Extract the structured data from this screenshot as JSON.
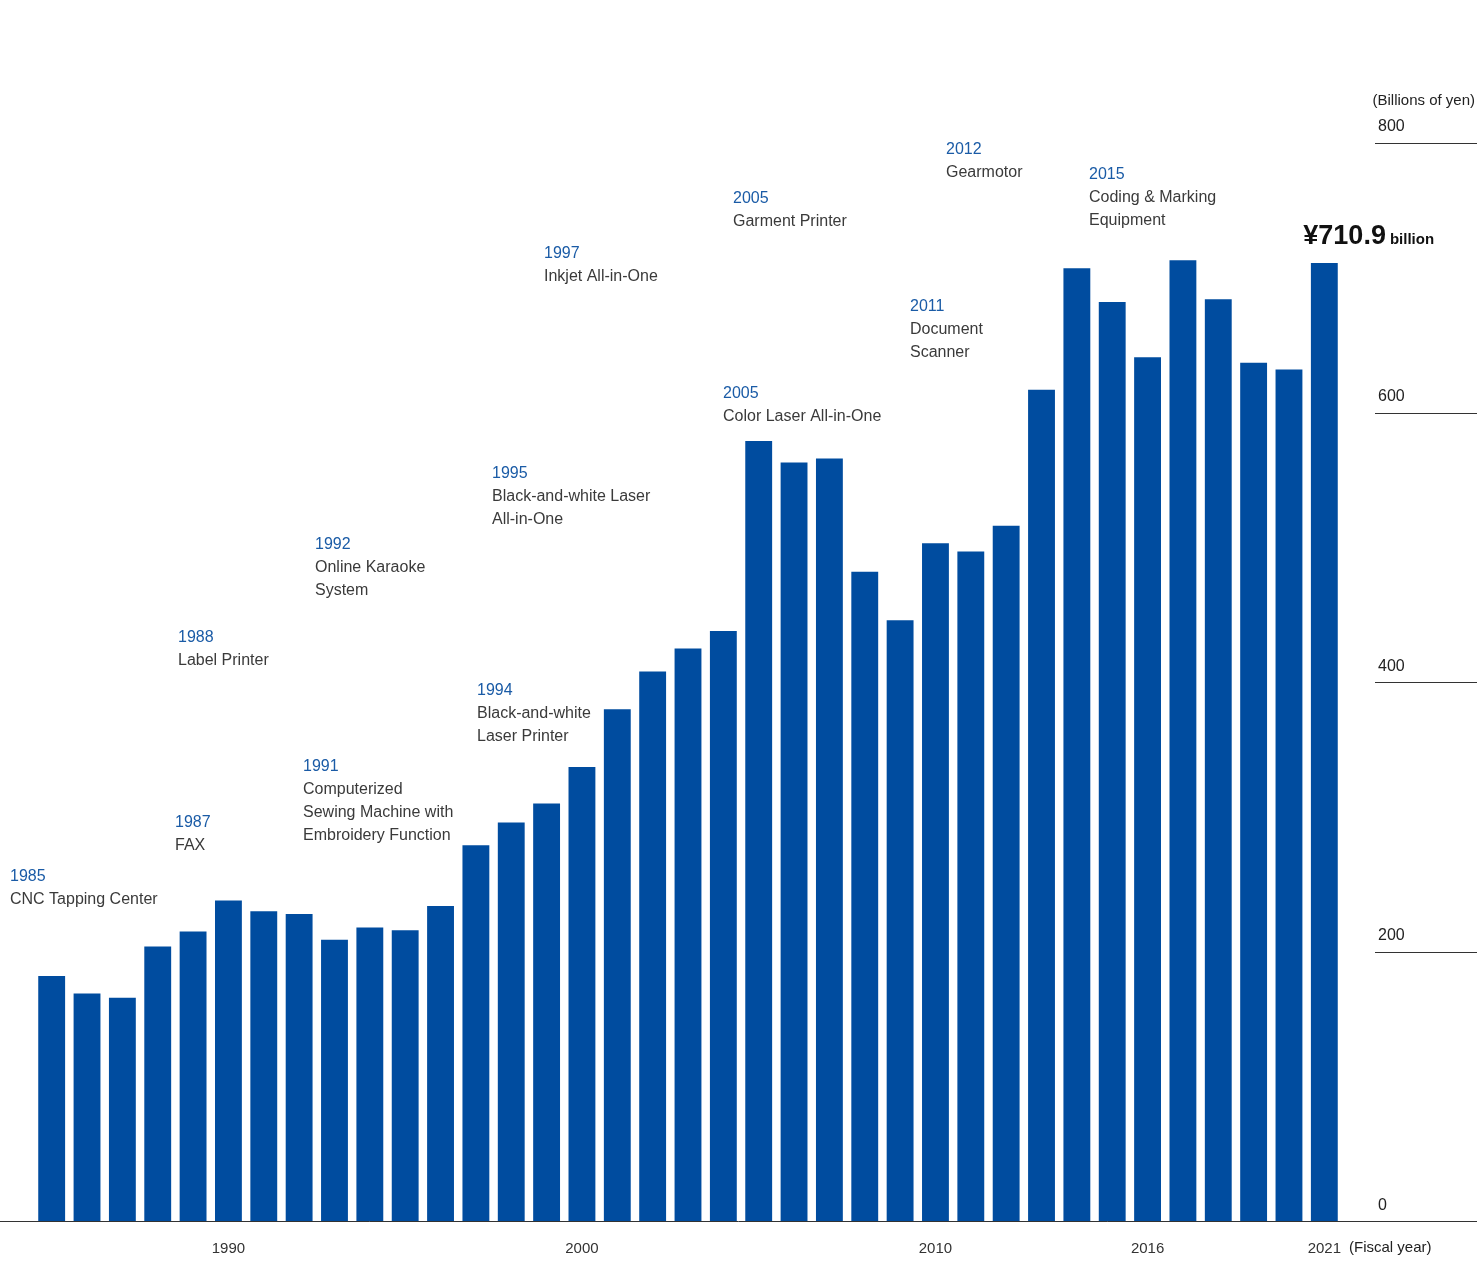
{
  "chart_data": {
    "type": "bar",
    "categories": [
      null,
      null,
      null,
      null,
      null,
      "1990",
      null,
      null,
      null,
      null,
      null,
      null,
      null,
      null,
      null,
      "2000",
      null,
      null,
      null,
      null,
      null,
      null,
      null,
      null,
      null,
      "2010",
      null,
      null,
      null,
      null,
      null,
      "2016",
      null,
      null,
      null,
      null,
      "2021"
    ],
    "values": [
      182,
      169,
      166,
      204,
      215,
      238,
      230,
      228,
      209,
      218,
      216,
      234,
      279,
      296,
      310,
      337,
      380,
      408,
      425,
      438,
      579,
      563,
      566,
      482,
      446,
      503,
      497,
      516,
      617,
      707,
      682,
      641,
      713,
      684,
      637,
      632,
      710.9
    ],
    "color": "#004c9f",
    "ylim": [
      0,
      800
    ],
    "yticks": [
      0,
      200,
      400,
      600,
      800
    ],
    "y_label": "(Billions of yen)",
    "x_label": "(Fiscal year)",
    "grid": false,
    "highlight": {
      "category": "2021",
      "label": "¥710.9",
      "suffix": "billion"
    },
    "annotations": [
      {
        "year": "1985",
        "text": [
          "CNC Tapping Center"
        ]
      },
      {
        "year": "1987",
        "text": [
          "FAX"
        ]
      },
      {
        "year": "1988",
        "text": [
          "Label Printer"
        ]
      },
      {
        "year": "1991",
        "text": [
          "Computerized",
          "Sewing Machine with",
          "Embroidery Function"
        ]
      },
      {
        "year": "1992",
        "text": [
          "Online Karaoke",
          "System"
        ]
      },
      {
        "year": "1994",
        "text": [
          "Black-and-white",
          "Laser Printer"
        ]
      },
      {
        "year": "1995",
        "text": [
          "Black-and-white Laser",
          "All-in-One"
        ]
      },
      {
        "year": "1997",
        "text": [
          "Inkjet All-in-One"
        ]
      },
      {
        "year": "2005",
        "text": [
          "Color Laser All-in-One"
        ]
      },
      {
        "year": "2005",
        "text": [
          "Garment Printer"
        ]
      },
      {
        "year": "2011",
        "text": [
          "Document",
          "Scanner"
        ]
      },
      {
        "year": "2012",
        "text": [
          "Gearmotor"
        ]
      },
      {
        "year": "2015",
        "text": [
          "Coding & Marking",
          "Equipment"
        ]
      }
    ]
  }
}
